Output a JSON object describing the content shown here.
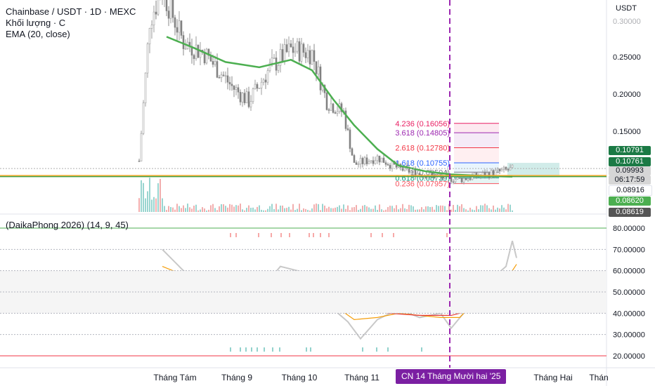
{
  "chart_data": [
    {
      "type": "candlestick",
      "title": "Chainbase / USDT · 1D · MEXC",
      "legend": [
        "Khối lượng · C",
        "EMA (20, close)"
      ],
      "y_axis_unit": "USDT",
      "y_ticks": [
        "0.25000",
        "0.20000",
        "0.15000"
      ],
      "price_labels": [
        {
          "value": "0.10791",
          "color": "#1b7a45"
        },
        {
          "value": "0.10761",
          "color": "#1b7a45"
        },
        {
          "value": "0.09993",
          "color": "#d6d6d6",
          "sub": "06:17:59"
        },
        {
          "value": "0.08916",
          "color": "#ffffff"
        },
        {
          "value": "0.08620",
          "color": "#4caf50"
        },
        {
          "value": "0.08619",
          "color": "#555555"
        }
      ],
      "fib_levels": [
        {
          "ratio": "4.236",
          "value": "0.16056",
          "label": "4.236 (0.16056)",
          "price": 0.16056,
          "color": "#e91e63"
        },
        {
          "ratio": "3.618",
          "value": "0.14805",
          "label": "3.618 (0.14805)",
          "price": 0.14805,
          "color": "#9c27b0"
        },
        {
          "ratio": "2.618",
          "value": "0.12780",
          "label": "2.618 (0.12780)",
          "price": 0.1278,
          "color": "#f23645"
        },
        {
          "ratio": "1.618",
          "value": "0.10755",
          "label": "1.618 (0.10755)",
          "price": 0.10755,
          "color": "#2962ff"
        },
        {
          "ratio": "1",
          "value": "0.09504",
          "label": "1 (0.09504)",
          "price": 0.09504,
          "color": "#787b86"
        },
        {
          "ratio": "0.618",
          "value": "0.08739",
          "label": "0.618 (0.08739)",
          "price": 0.08739,
          "color": "#089981"
        },
        {
          "ratio": "0.236",
          "value": "0.07957",
          "label": "0.236 (0.07957)",
          "price": 0.07957,
          "color": "#f7525f"
        }
      ],
      "ema_20": [
        {
          "x": "2025-07-28",
          "y": 0.277
        },
        {
          "x": "2025-08-10",
          "y": 0.262
        },
        {
          "x": "2025-08-25",
          "y": 0.243
        },
        {
          "x": "2025-09-10",
          "y": 0.236
        },
        {
          "x": "2025-09-25",
          "y": 0.246
        },
        {
          "x": "2025-10-05",
          "y": 0.232
        },
        {
          "x": "2025-10-15",
          "y": 0.193
        },
        {
          "x": "2025-10-25",
          "y": 0.158
        },
        {
          "x": "2025-11-05",
          "y": 0.126
        },
        {
          "x": "2025-11-15",
          "y": 0.104
        },
        {
          "x": "2025-11-28",
          "y": 0.096
        },
        {
          "x": "2025-12-10",
          "y": 0.092
        },
        {
          "x": "2025-12-25",
          "y": 0.09
        },
        {
          "x": "2026-01-08",
          "y": 0.089
        }
      ],
      "price_path": [
        {
          "x": "2025-07-15",
          "y": 0.11
        },
        {
          "x": "2025-07-20",
          "y": 0.3
        },
        {
          "x": "2025-07-26",
          "y": 0.34
        },
        {
          "x": "2025-08-05",
          "y": 0.27
        },
        {
          "x": "2025-08-15",
          "y": 0.255
        },
        {
          "x": "2025-08-28",
          "y": 0.21
        },
        {
          "x": "2025-09-05",
          "y": 0.19
        },
        {
          "x": "2025-09-15",
          "y": 0.235
        },
        {
          "x": "2025-09-25",
          "y": 0.26
        },
        {
          "x": "2025-10-05",
          "y": 0.255
        },
        {
          "x": "2025-10-12",
          "y": 0.19
        },
        {
          "x": "2025-10-20",
          "y": 0.175
        },
        {
          "x": "2025-10-25",
          "y": 0.105
        },
        {
          "x": "2025-11-05",
          "y": 0.115
        },
        {
          "x": "2025-11-15",
          "y": 0.1
        },
        {
          "x": "2025-11-25",
          "y": 0.093
        },
        {
          "x": "2025-12-05",
          "y": 0.088
        },
        {
          "x": "2025-12-14",
          "y": 0.085
        },
        {
          "x": "2026-01-08",
          "y": 0.099
        }
      ],
      "x_ticks": [
        "Tháng Tám",
        "Tháng 9",
        "Tháng 10",
        "Tháng 11",
        "Tháng Hai",
        "Thán"
      ],
      "crosshair_date": "CN 14 Tháng Mười hai '25"
    },
    {
      "type": "line",
      "title": "(DaikaPhong 2026) (14, 9, 45)",
      "y_ticks": [
        "80.00000",
        "70.00000",
        "60.00000",
        "50.00000",
        "40.00000",
        "30.00000",
        "20.00000"
      ],
      "ylim": [
        20,
        80
      ],
      "series": [
        {
          "key": "raw",
          "color": "#c8c8c8",
          "values": [
            {
              "x": "2025-07-26",
              "y": 70
            },
            {
              "x": "2025-08-05",
              "y": 60
            },
            {
              "x": "2025-08-15",
              "y": 56
            },
            {
              "x": "2025-08-25",
              "y": 46
            },
            {
              "x": "2025-09-02",
              "y": 43
            },
            {
              "x": "2025-09-10",
              "y": 50
            },
            {
              "x": "2025-09-20",
              "y": 62
            },
            {
              "x": "2025-09-28",
              "y": 60
            },
            {
              "x": "2025-10-05",
              "y": 58
            },
            {
              "x": "2025-10-15",
              "y": 42
            },
            {
              "x": "2025-10-22",
              "y": 36
            },
            {
              "x": "2025-10-28",
              "y": 28
            },
            {
              "x": "2025-11-05",
              "y": 37
            },
            {
              "x": "2025-11-15",
              "y": 42
            },
            {
              "x": "2025-11-25",
              "y": 38
            },
            {
              "x": "2025-12-05",
              "y": 40
            },
            {
              "x": "2025-12-10",
              "y": 33
            },
            {
              "x": "2025-12-20",
              "y": 45
            },
            {
              "x": "2025-12-28",
              "y": 55
            },
            {
              "x": "2026-01-05",
              "y": 62
            },
            {
              "x": "2026-01-08",
              "y": 74
            },
            {
              "x": "2026-01-10",
              "y": 66
            }
          ]
        },
        {
          "key": "fast",
          "color": "#f59e0b",
          "values": [
            {
              "x": "2025-07-26",
              "y": 62
            },
            {
              "x": "2025-08-05",
              "y": 58
            },
            {
              "x": "2025-08-15",
              "y": 52
            },
            {
              "x": "2025-08-25",
              "y": 46
            },
            {
              "x": "2025-09-05",
              "y": 47
            },
            {
              "x": "2025-09-15",
              "y": 55
            },
            {
              "x": "2025-09-25",
              "y": 57
            },
            {
              "x": "2025-10-05",
              "y": 54
            },
            {
              "x": "2025-10-15",
              "y": 44
            },
            {
              "x": "2025-10-25",
              "y": 37
            },
            {
              "x": "2025-11-05",
              "y": 38
            },
            {
              "x": "2025-11-15",
              "y": 40
            },
            {
              "x": "2025-11-25",
              "y": 39
            },
            {
              "x": "2025-12-05",
              "y": 38
            },
            {
              "x": "2025-12-14",
              "y": 38
            },
            {
              "x": "2025-12-22",
              "y": 46
            },
            {
              "x": "2026-01-01",
              "y": 54
            },
            {
              "x": "2026-01-08",
              "y": 60
            },
            {
              "x": "2026-01-10",
              "y": 63
            }
          ]
        },
        {
          "key": "slow",
          "color": "#e53935",
          "values": [
            {
              "x": "2025-09-10",
              "y": 53
            },
            {
              "x": "2025-09-25",
              "y": 55
            },
            {
              "x": "2025-10-10",
              "y": 50
            },
            {
              "x": "2025-10-25",
              "y": 44
            },
            {
              "x": "2025-11-10",
              "y": 40
            },
            {
              "x": "2025-11-25",
              "y": 39
            },
            {
              "x": "2025-12-10",
              "y": 39
            },
            {
              "x": "2025-12-22",
              "y": 42
            },
            {
              "x": "2026-01-01",
              "y": 46
            },
            {
              "x": "2026-01-10",
              "y": 52
            }
          ]
        }
      ]
    }
  ]
}
